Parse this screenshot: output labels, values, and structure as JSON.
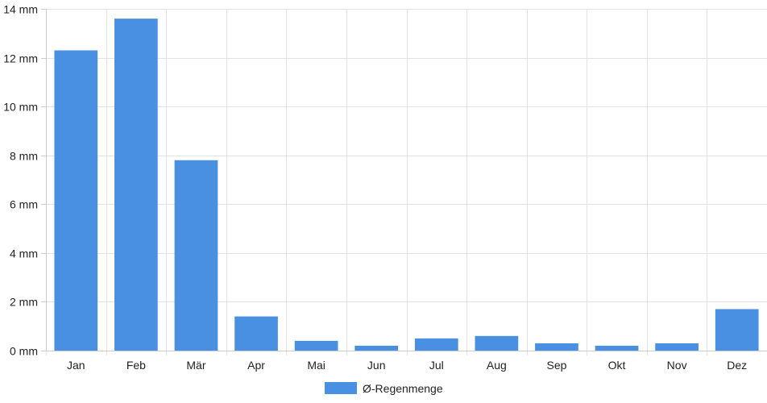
{
  "chart_data": {
    "type": "bar",
    "categories": [
      "Jan",
      "Feb",
      "Mär",
      "Apr",
      "Mai",
      "Jun",
      "Jul",
      "Aug",
      "Sep",
      "Okt",
      "Nov",
      "Dez"
    ],
    "series": [
      {
        "name": "Ø-Regenmenge",
        "color": "#4a90e2",
        "values": [
          12.3,
          13.6,
          7.8,
          1.4,
          0.4,
          0.2,
          0.5,
          0.6,
          0.3,
          0.2,
          0.3,
          1.7
        ]
      }
    ],
    "y_ticks": [
      0,
      2,
      4,
      6,
      8,
      10,
      12,
      14
    ],
    "y_unit": "mm",
    "ylim": [
      0,
      14
    ],
    "grid": true,
    "legend_position": "bottom-center"
  }
}
